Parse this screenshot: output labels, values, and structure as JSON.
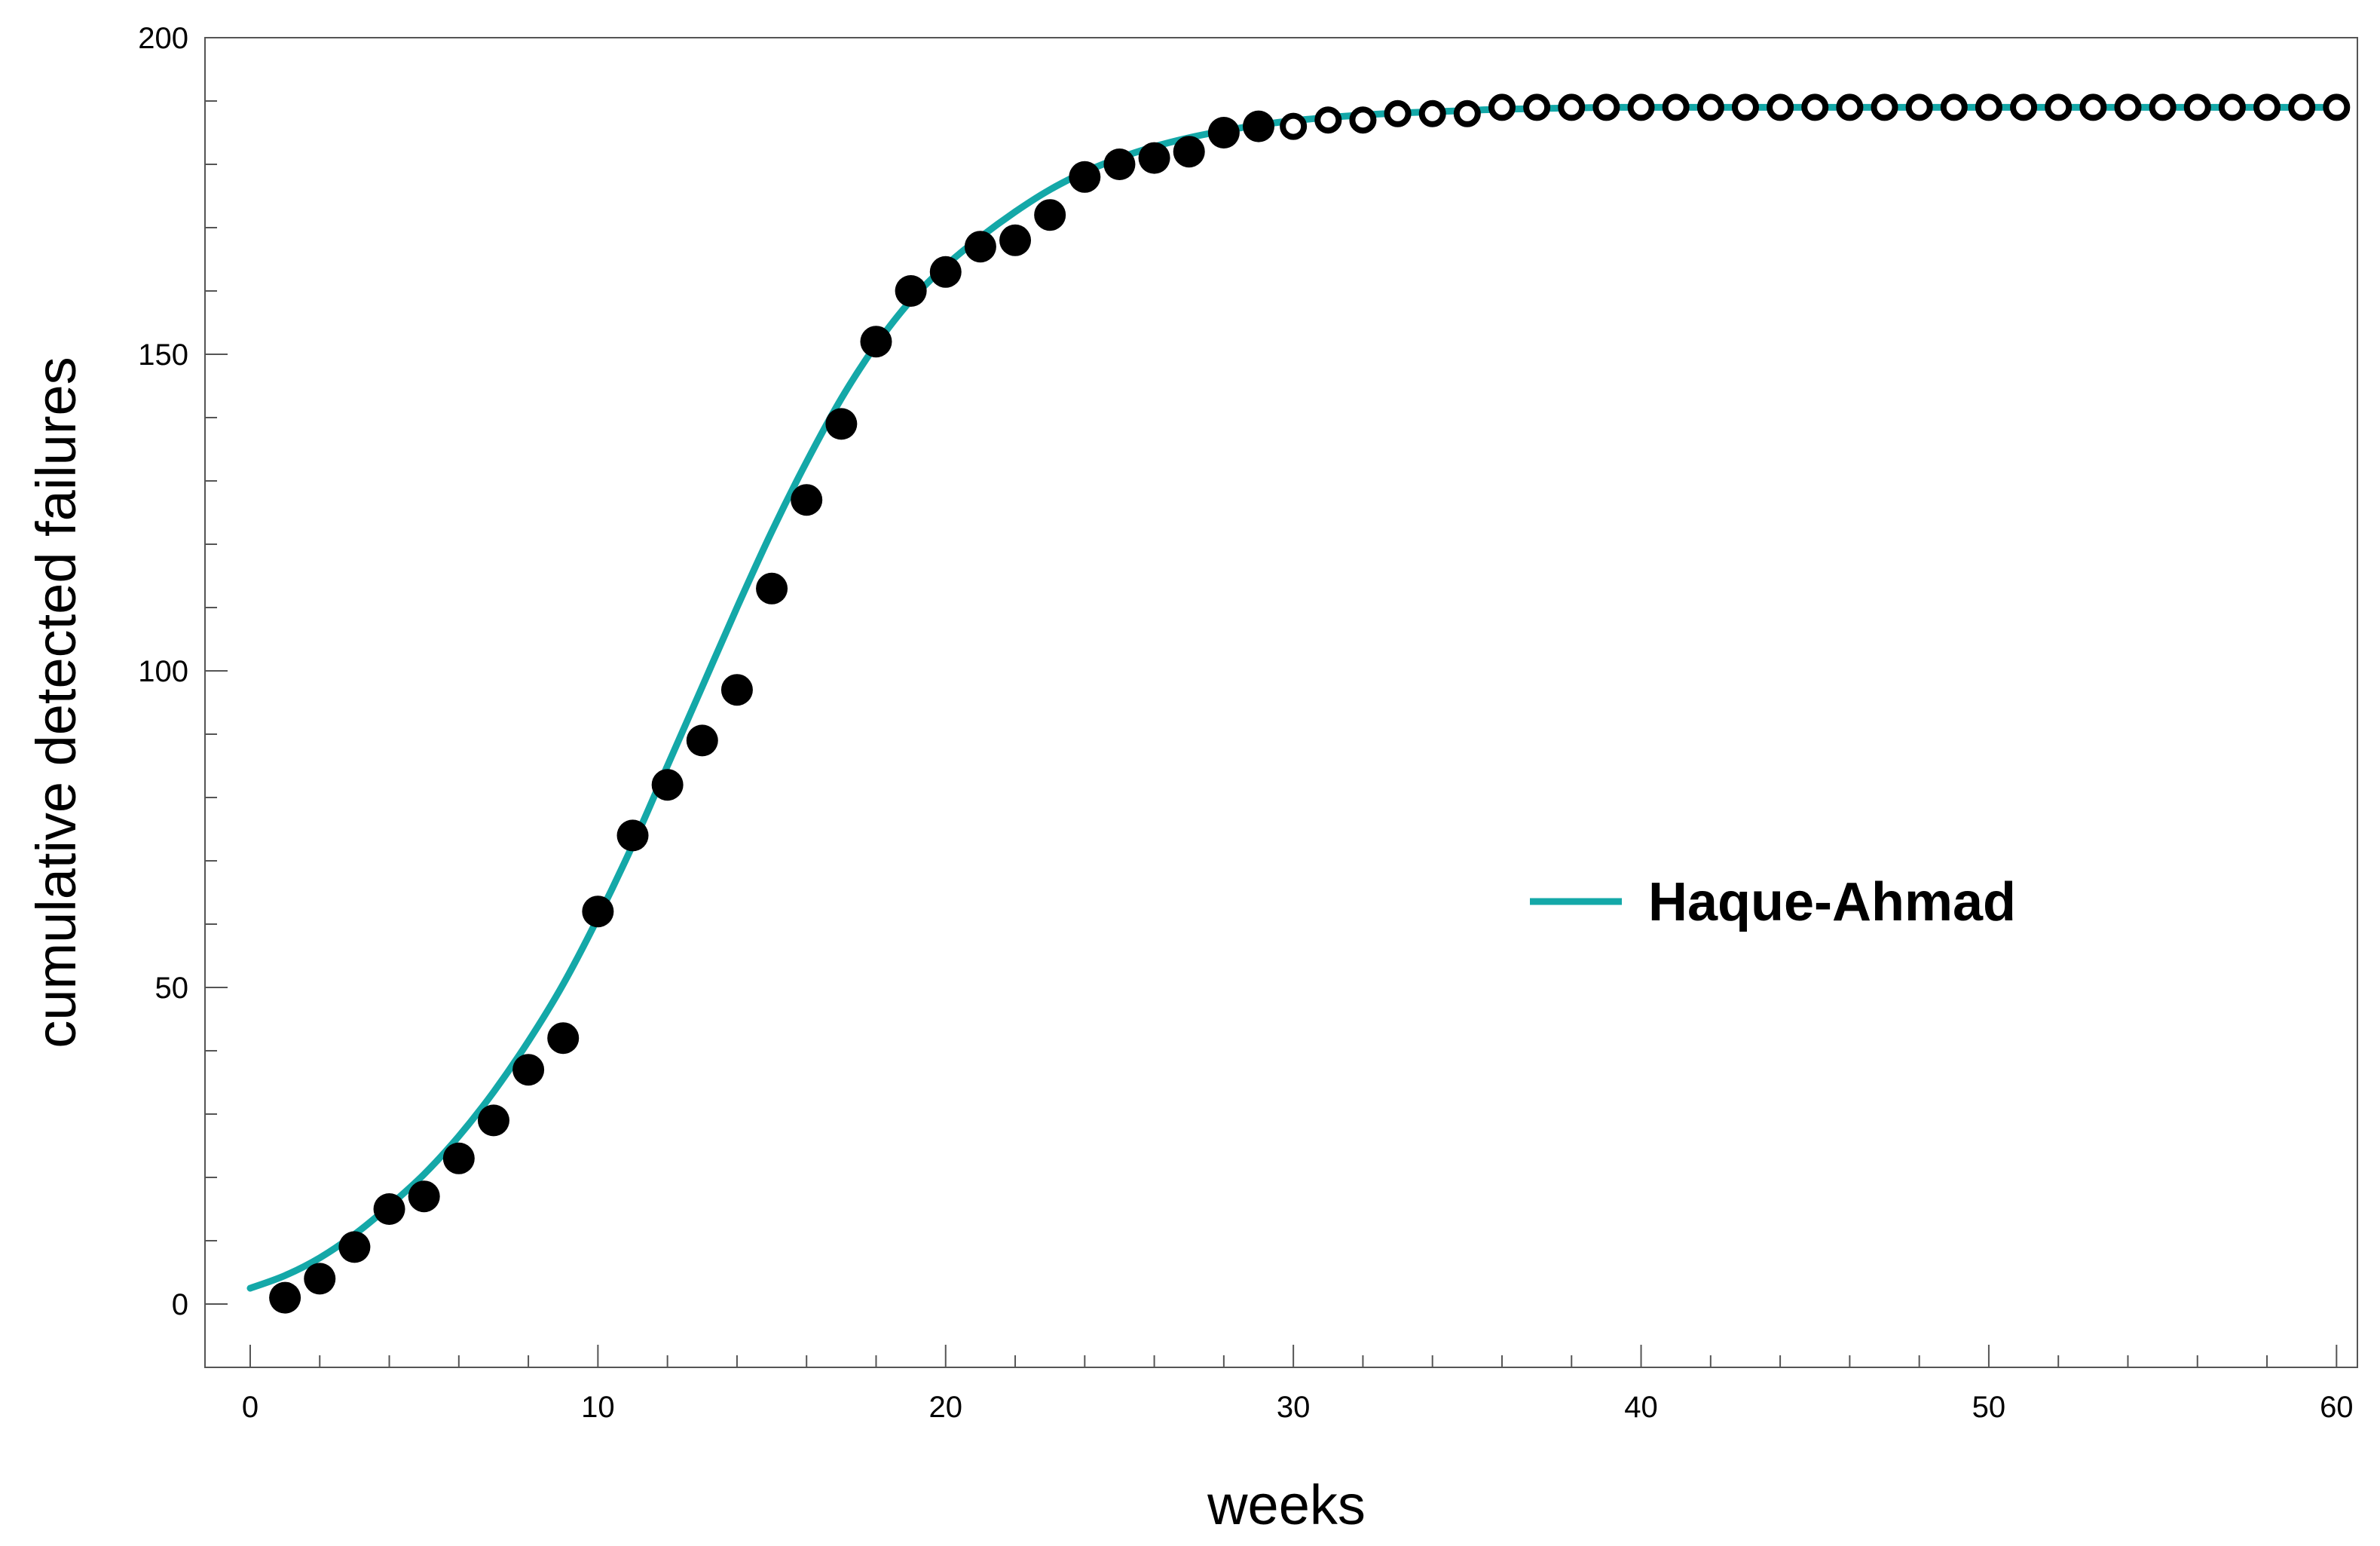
{
  "chart_data": {
    "type": "scatter",
    "xlabel": "weeks",
    "ylabel": "cumulative detected failures",
    "xlim": [
      -1.3,
      60.6
    ],
    "ylim": [
      -10,
      200
    ],
    "x_ticks": [
      0,
      10,
      20,
      30,
      40,
      50,
      60
    ],
    "y_ticks": [
      0,
      50,
      100,
      150,
      200
    ],
    "x_tick_labels": [
      "0",
      "10",
      "20",
      "30",
      "40",
      "50",
      "60"
    ],
    "y_tick_labels": [
      "0",
      "50",
      "100",
      "150",
      "200"
    ],
    "x_minor_step": 2,
    "y_minor_step": 10,
    "grid": false,
    "legend_position": "right",
    "series": [
      {
        "name": "Haque-Ahmad",
        "kind": "line",
        "color": "#14a8a8",
        "x": [
          0,
          1,
          2,
          3,
          4,
          5,
          6,
          7,
          8,
          9,
          10,
          11,
          12,
          13,
          14,
          15,
          16,
          17,
          18,
          19,
          20,
          21,
          22,
          23,
          24,
          25,
          26,
          27,
          28,
          29,
          30,
          31,
          32,
          33,
          34,
          35,
          36,
          37,
          38,
          39,
          40,
          41,
          42,
          43,
          44,
          45,
          46,
          47,
          48,
          49,
          50,
          51,
          52,
          53,
          54,
          55,
          56,
          57,
          58,
          59,
          60
        ],
        "y": [
          2.5,
          4.5,
          7.3,
          11.0,
          15.5,
          20.5,
          26.5,
          33.5,
          41.5,
          50.5,
          61.0,
          72.5,
          85.0,
          97.5,
          110.0,
          122.0,
          133.0,
          143.0,
          151.5,
          158.5,
          164.0,
          168.5,
          172.5,
          176.0,
          178.8,
          181.0,
          182.8,
          184.2,
          185.3,
          186.2,
          186.9,
          187.4,
          187.8,
          188.1,
          188.3,
          188.5,
          188.7,
          188.8,
          188.9,
          189.0,
          189.0,
          189.0,
          189.0,
          189.0,
          189.0,
          189.0,
          189.0,
          189.0,
          189.0,
          189.0,
          189.0,
          189.0,
          189.0,
          189.0,
          189.0,
          189.0,
          189.0,
          189.0,
          189.0,
          189.0,
          189.0
        ]
      },
      {
        "kind": "points-filled",
        "color": "#000000",
        "x": [
          1,
          2,
          3,
          4,
          5,
          6,
          7,
          8,
          9,
          10,
          11,
          12,
          13,
          14,
          15,
          16,
          17,
          18,
          19,
          20,
          21,
          22,
          23,
          24,
          25,
          26,
          27,
          28,
          29
        ],
        "y": [
          1,
          4,
          9,
          15,
          17,
          23,
          29,
          37,
          42,
          62,
          74,
          82,
          89,
          97,
          113,
          127,
          139,
          152,
          160,
          163,
          167,
          168,
          172,
          178,
          180,
          181,
          182,
          185,
          186
        ]
      },
      {
        "kind": "points-open",
        "color": "#000000",
        "x": [
          30,
          31,
          32,
          33,
          34,
          35,
          36,
          37,
          38,
          39,
          40,
          41,
          42,
          43,
          44,
          45,
          46,
          47,
          48,
          49,
          50,
          51,
          52,
          53,
          54,
          55,
          56,
          57,
          58,
          59,
          60
        ],
        "y": [
          186,
          187,
          187,
          188,
          188,
          188,
          189,
          189,
          189,
          189,
          189,
          189,
          189,
          189,
          189,
          189,
          189,
          189,
          189,
          189,
          189,
          189,
          189,
          189,
          189,
          189,
          189,
          189,
          189,
          189,
          189
        ]
      }
    ]
  }
}
